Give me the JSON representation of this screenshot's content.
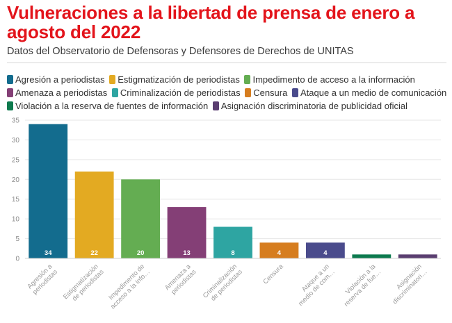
{
  "title": "Vulneraciones a la libertad de prensa de enero a agosto del 2022",
  "subtitle": "Datos del Observatorio de Defensoras y Defensores de Derechos de UNITAS",
  "legend": [
    {
      "label": "Agresión a periodistas",
      "color": "#136c8e"
    },
    {
      "label": "Estigmatización de periodistas",
      "color": "#e3aa22"
    },
    {
      "label": "Impedimento de acceso a la información",
      "color": "#64ad52"
    },
    {
      "label": "Amenaza a periodistas",
      "color": "#843f76"
    },
    {
      "label": "Criminalización de periodistas",
      "color": "#2ea5a2"
    },
    {
      "label": "Censura",
      "color": "#d67d1f"
    },
    {
      "label": "Ataque a un medio de comunicación",
      "color": "#4a4b8c"
    },
    {
      "label": "Violación a la reserva de fuentes de información",
      "color": "#0d7a4e"
    },
    {
      "label": "Asignación discriminatoria de publicidad oficial",
      "color": "#5a3e70"
    }
  ],
  "chart_data": {
    "type": "bar",
    "categories": [
      "Agresión a periodistas",
      "Estigmatización de periodistas",
      "Impedimento de acceso a la información",
      "Amenaza a periodistas",
      "Criminalización de periodistas",
      "Censura",
      "Ataque a un medio de comunicación",
      "Violación a la reserva de fuentes de información",
      "Asignación discriminatoria de publicidad oficial"
    ],
    "tick_labels": [
      [
        "Agresión a",
        "periodistas"
      ],
      [
        "Estigmatización",
        "de periodistas"
      ],
      [
        "Impedimento de",
        "acceso a la info…"
      ],
      [
        "Amenaza a",
        "periodistas"
      ],
      [
        "Criminalización",
        "de periodistas"
      ],
      [
        "Censura"
      ],
      [
        "Ataque a un",
        "medio de com…"
      ],
      [
        "Violación a la",
        "reserva de fue…"
      ],
      [
        "Asignación",
        "discriminatori…"
      ]
    ],
    "values": [
      34,
      22,
      20,
      13,
      8,
      4,
      4,
      1,
      1
    ],
    "data_labels": [
      "34",
      "22",
      "20",
      "13",
      "8",
      "4",
      "4",
      "",
      ""
    ],
    "colors": [
      "#136c8e",
      "#e3aa22",
      "#64ad52",
      "#843f76",
      "#2ea5a2",
      "#d67d1f",
      "#4a4b8c",
      "#0d7a4e",
      "#5a3e70"
    ],
    "ylim": [
      0,
      35
    ],
    "yticks": [
      0,
      5,
      10,
      15,
      20,
      25,
      30,
      35
    ],
    "xlabel": "",
    "ylabel": "",
    "grid": true,
    "legend_position": "top"
  }
}
